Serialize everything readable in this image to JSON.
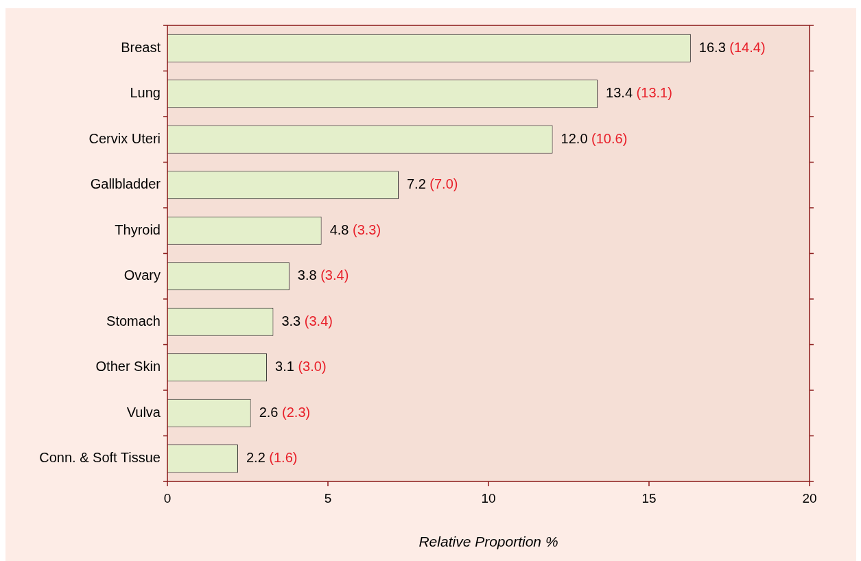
{
  "chart_data": {
    "type": "bar",
    "orientation": "horizontal",
    "xlabel": "Relative Proportion %",
    "categories": [
      "Breast",
      "Lung",
      "Cervix Uteri",
      "Gallbladder",
      "Thyroid",
      "Ovary",
      "Stomach",
      "Other Skin",
      "Vulva",
      "Conn. & Soft Tissue"
    ],
    "values": [
      16.3,
      13.4,
      12.0,
      7.2,
      4.8,
      3.8,
      3.3,
      3.1,
      2.6,
      2.2
    ],
    "value_labels": [
      "16.3 (14.4)",
      "13.4 (13.1)",
      "12.0 (10.6)",
      "7.2 (7.0)",
      "4.8 (3.3)",
      "3.8 (3.4)",
      "3.3 (3.4)",
      "3.1 (3.0)",
      "2.6 (2.3)",
      "2.2 (1.6)"
    ],
    "color": "#e4efcb",
    "xlim": [
      0,
      20
    ],
    "xticks": [
      0,
      5,
      10,
      15,
      20
    ],
    "grid": false,
    "legend": false
  }
}
